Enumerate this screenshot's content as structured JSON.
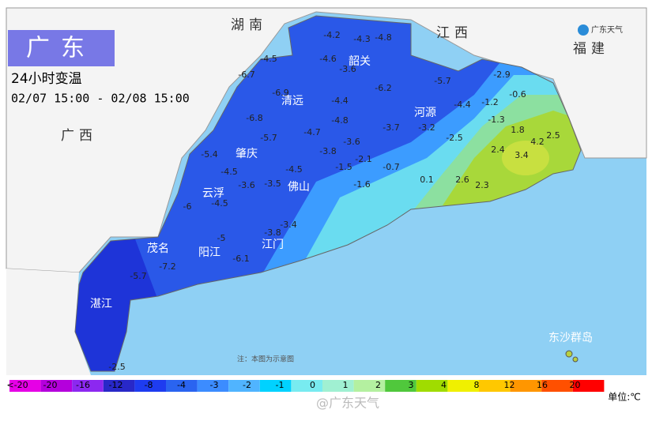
{
  "header": {
    "title": "广东",
    "subtitle": "24小时变温",
    "period": "02/07 15:00 - 02/08 15:00",
    "logo": "广东天气"
  },
  "provinces": [
    "湖南",
    "江西",
    "福建",
    "广西"
  ],
  "cities": [
    "韶关",
    "清远",
    "河源",
    "肇庆",
    "云浮",
    "佛山",
    "茂名",
    "阳江",
    "江门",
    "湛江",
    "东沙群岛"
  ],
  "note": "注：本图为示意图",
  "stations": [
    -4.2,
    -4.3,
    -4.8,
    -4.5,
    -6.7,
    -4.6,
    -3.6,
    -5.7,
    -2.9,
    -6.9,
    -4.4,
    -6.2,
    -4.8,
    -3.7,
    -3.2,
    -4.4,
    -1.2,
    -0.6,
    -1.3,
    -6.8,
    -5.7,
    -4.7,
    -3.6,
    -2.5,
    1.8,
    4.2,
    2.5,
    -5.4,
    -4.5,
    -3.8,
    -2.1,
    -1.5,
    -0.7,
    2.4,
    3.4,
    -3.6,
    -3.5,
    -4.5,
    0.1,
    2.6,
    2.3,
    -1.6,
    -6,
    -4.5,
    -3.8,
    -3.4,
    -5,
    -6.1,
    -7.2,
    -5.7,
    -2.5
  ],
  "legend": {
    "labels": [
      "<-20",
      "-20",
      "-16",
      "-12",
      "-8",
      "-4",
      "-3",
      "-2",
      "-1",
      "0",
      "1",
      "2",
      "3",
      "4",
      "8",
      "12",
      "16",
      "20"
    ],
    "colors": [
      "#e600e6",
      "#b400dc",
      "#8c28f0",
      "#2828c8",
      "#1e3cf0",
      "#2a64f0",
      "#3c8cff",
      "#50b4ff",
      "#00d2ff",
      "#78ebf0",
      "#a0f0d2",
      "#b4f0a0",
      "#50c83c",
      "#a0dc00",
      "#f0f000",
      "#ffc800",
      "#ff9600",
      "#ff5000",
      "#ff0000"
    ],
    "unit": "单位:℃"
  },
  "watermark": "@广东天气"
}
